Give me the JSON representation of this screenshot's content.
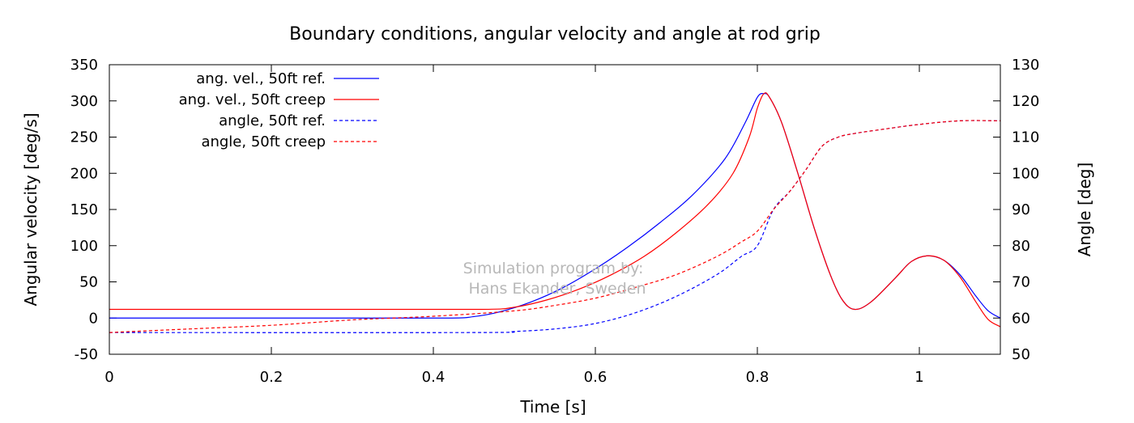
{
  "chart_data": {
    "type": "line",
    "title": "Boundary conditions, angular velocity and angle at rod grip",
    "xlabel": "Time [s]",
    "ylabel": "Angular velocity [deg/s]",
    "y2label": "Angle [deg]",
    "xlim": [
      0,
      1.1
    ],
    "ylim": [
      -50,
      350
    ],
    "y2lim": [
      50,
      130
    ],
    "xticks": [
      0,
      0.2,
      0.4,
      0.6,
      0.8,
      1
    ],
    "xtick_labels": [
      "0",
      "0.2",
      "0.4",
      "0.6",
      "0.8",
      "1"
    ],
    "yticks": [
      -50,
      0,
      50,
      100,
      150,
      200,
      250,
      300,
      350
    ],
    "ytick_labels": [
      "-50",
      "0",
      "50",
      "100",
      "150",
      "200",
      "250",
      "300",
      "350"
    ],
    "y2ticks": [
      50,
      60,
      70,
      80,
      90,
      100,
      110,
      120,
      130
    ],
    "y2tick_labels": [
      "50",
      "60",
      "70",
      "80",
      "90",
      "100",
      "110",
      "120",
      "130"
    ],
    "grid": false,
    "legend_position": "top-left",
    "annotation": [
      "Simulation program by:",
      "Hans Ekander, Sweden"
    ],
    "series": [
      {
        "name": "ang. vel., 50ft ref.",
        "axis": "left",
        "color": "#0000ff",
        "style": "solid",
        "points": [
          [
            0,
            0
          ],
          [
            0.3,
            0
          ],
          [
            0.42,
            0
          ],
          [
            0.45,
            2
          ],
          [
            0.48,
            8
          ],
          [
            0.52,
            22
          ],
          [
            0.56,
            42
          ],
          [
            0.6,
            68
          ],
          [
            0.64,
            98
          ],
          [
            0.68,
            132
          ],
          [
            0.72,
            170
          ],
          [
            0.76,
            220
          ],
          [
            0.785,
            270
          ],
          [
            0.8,
            305
          ],
          [
            0.808,
            310
          ],
          [
            0.815,
            305
          ],
          [
            0.83,
            270
          ],
          [
            0.85,
            200
          ],
          [
            0.87,
            125
          ],
          [
            0.89,
            60
          ],
          [
            0.905,
            25
          ],
          [
            0.92,
            12
          ],
          [
            0.94,
            22
          ],
          [
            0.97,
            55
          ],
          [
            0.99,
            78
          ],
          [
            1.01,
            86
          ],
          [
            1.03,
            80
          ],
          [
            1.05,
            60
          ],
          [
            1.07,
            30
          ],
          [
            1.085,
            10
          ],
          [
            1.1,
            0
          ]
        ]
      },
      {
        "name": "ang. vel., 50ft creep",
        "axis": "left",
        "color": "#ff0000",
        "style": "solid",
        "points": [
          [
            0,
            12
          ],
          [
            0.3,
            12
          ],
          [
            0.46,
            12
          ],
          [
            0.5,
            15
          ],
          [
            0.54,
            25
          ],
          [
            0.58,
            40
          ],
          [
            0.62,
            60
          ],
          [
            0.66,
            85
          ],
          [
            0.7,
            118
          ],
          [
            0.74,
            158
          ],
          [
            0.77,
            200
          ],
          [
            0.79,
            250
          ],
          [
            0.8,
            290
          ],
          [
            0.808,
            310
          ],
          [
            0.815,
            305
          ],
          [
            0.83,
            270
          ],
          [
            0.85,
            200
          ],
          [
            0.87,
            125
          ],
          [
            0.89,
            60
          ],
          [
            0.905,
            25
          ],
          [
            0.92,
            12
          ],
          [
            0.94,
            22
          ],
          [
            0.97,
            55
          ],
          [
            0.99,
            78
          ],
          [
            1.01,
            86
          ],
          [
            1.03,
            80
          ],
          [
            1.05,
            57
          ],
          [
            1.07,
            22
          ],
          [
            1.085,
            -2
          ],
          [
            1.1,
            -12
          ]
        ]
      },
      {
        "name": "angle, 50ft ref.",
        "axis": "right",
        "color": "#0000ff",
        "style": "dashed",
        "points": [
          [
            0,
            56
          ],
          [
            0.45,
            56
          ],
          [
            0.5,
            56.3
          ],
          [
            0.55,
            57
          ],
          [
            0.6,
            58.5
          ],
          [
            0.65,
            61.5
          ],
          [
            0.7,
            66
          ],
          [
            0.75,
            72
          ],
          [
            0.78,
            77
          ],
          [
            0.8,
            80
          ],
          [
            0.82,
            90
          ],
          [
            0.84,
            95
          ],
          [
            0.86,
            101
          ],
          [
            0.88,
            107.5
          ],
          [
            0.9,
            110
          ],
          [
            0.92,
            111
          ],
          [
            0.95,
            112
          ],
          [
            1.0,
            113.5
          ],
          [
            1.05,
            114.5
          ],
          [
            1.1,
            114.5
          ]
        ]
      },
      {
        "name": "angle, 50ft creep",
        "axis": "right",
        "color": "#ff0000",
        "style": "dashed",
        "points": [
          [
            0,
            56
          ],
          [
            0.1,
            57
          ],
          [
            0.2,
            58
          ],
          [
            0.3,
            59.5
          ],
          [
            0.4,
            60.5
          ],
          [
            0.5,
            62
          ],
          [
            0.55,
            63.5
          ],
          [
            0.6,
            65.5
          ],
          [
            0.65,
            68.5
          ],
          [
            0.7,
            72
          ],
          [
            0.75,
            77
          ],
          [
            0.78,
            81
          ],
          [
            0.8,
            84
          ],
          [
            0.82,
            90
          ],
          [
            0.84,
            95
          ],
          [
            0.86,
            101
          ],
          [
            0.88,
            107.5
          ],
          [
            0.9,
            110
          ],
          [
            0.92,
            111
          ],
          [
            0.95,
            112
          ],
          [
            1.0,
            113.5
          ],
          [
            1.05,
            114.5
          ],
          [
            1.1,
            114.5
          ]
        ]
      }
    ]
  }
}
